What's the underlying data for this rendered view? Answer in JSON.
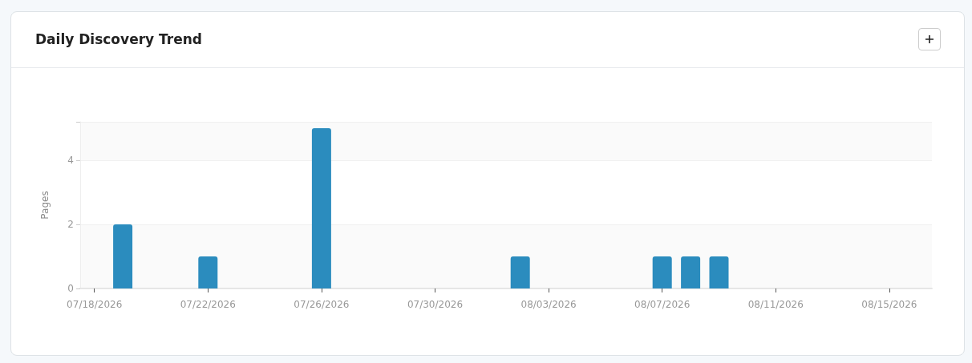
{
  "chart_data": {
    "type": "bar",
    "title": "Daily Discovery Trend",
    "ylabel": "Pages",
    "x": [
      "2026-07-19",
      "2026-07-22",
      "2026-07-26",
      "2026-08-02",
      "2026-08-07",
      "2026-08-08",
      "2026-08-09"
    ],
    "values": [
      2,
      1,
      5,
      1,
      1,
      1,
      1
    ],
    "color": "#2b8cbe",
    "xlim": [
      "2026-07-17T12:00",
      "2026-08-16T12:00"
    ],
    "xticks": [
      {
        "value": "2026-07-18",
        "label": "07/18/2026"
      },
      {
        "value": "2026-07-22",
        "label": "07/22/2026"
      },
      {
        "value": "2026-07-26",
        "label": "07/26/2026"
      },
      {
        "value": "2026-07-30",
        "label": "07/30/2026"
      },
      {
        "value": "2026-08-03",
        "label": "08/03/2026"
      },
      {
        "value": "2026-08-07",
        "label": "08/07/2026"
      },
      {
        "value": "2026-08-11",
        "label": "08/11/2026"
      },
      {
        "value": "2026-08-15",
        "label": "08/15/2026"
      }
    ],
    "ylim": [
      0,
      5.2
    ],
    "yticks": [
      0,
      2,
      4
    ],
    "grid": "y"
  }
}
